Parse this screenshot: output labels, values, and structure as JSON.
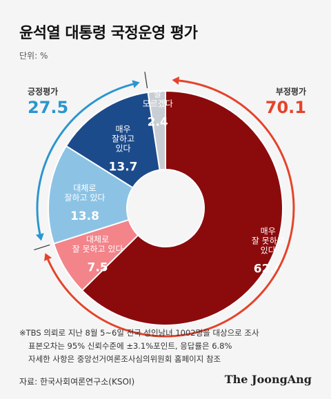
{
  "header": {
    "title": "윤석열 대통령 국정운영 평가",
    "unit": "단위: %"
  },
  "positive": {
    "label": "긍정평가",
    "value": "27.5",
    "color": "#2a96cf"
  },
  "negative": {
    "label": "부정평가",
    "value": "70.1",
    "color": "#e5432a"
  },
  "chart_data": {
    "type": "pie",
    "title": "윤석열 대통령 국정운영 평가",
    "unit": "%",
    "slices": [
      {
        "label": [
          "잘",
          "모르겠다"
        ],
        "value": 2.4,
        "color": "#c9ced4",
        "text_color": "#ffffff"
      },
      {
        "label": [
          "매우",
          "잘 못하고",
          "있다"
        ],
        "value": 62.6,
        "color": "#8b0b0d",
        "text_color": "#ffffff"
      },
      {
        "label": [
          "대체로",
          "잘 못하고 있다"
        ],
        "value": 7.5,
        "color": "#f2848a",
        "text_color": "#ffffff"
      },
      {
        "label": [
          "대체로",
          "잘하고 있다"
        ],
        "value": 13.8,
        "color": "#8cc3e5",
        "text_color": "#ffffff"
      },
      {
        "label": [
          "매우",
          "잘하고",
          "있다"
        ],
        "value": 13.7,
        "color": "#1c4b8b",
        "text_color": "#ffffff"
      }
    ],
    "groups": [
      {
        "name": "긍정평가",
        "value": 27.5
      },
      {
        "name": "부정평가",
        "value": 70.1
      }
    ]
  },
  "footnote": [
    "※TBS 의뢰로 지난 8월 5~6일 전국 성인남녀 1002명을 대상으로 조사",
    "표본오차는 95% 신뢰수준에 ±3.1%포인트, 응답률은 6.8%",
    "자세한 사항은 중앙선거여론조사심의위원회 홈페이지 참조"
  ],
  "source": "자료: 한국사회여론연구소(KSOI)",
  "brand": "The JoongAng"
}
